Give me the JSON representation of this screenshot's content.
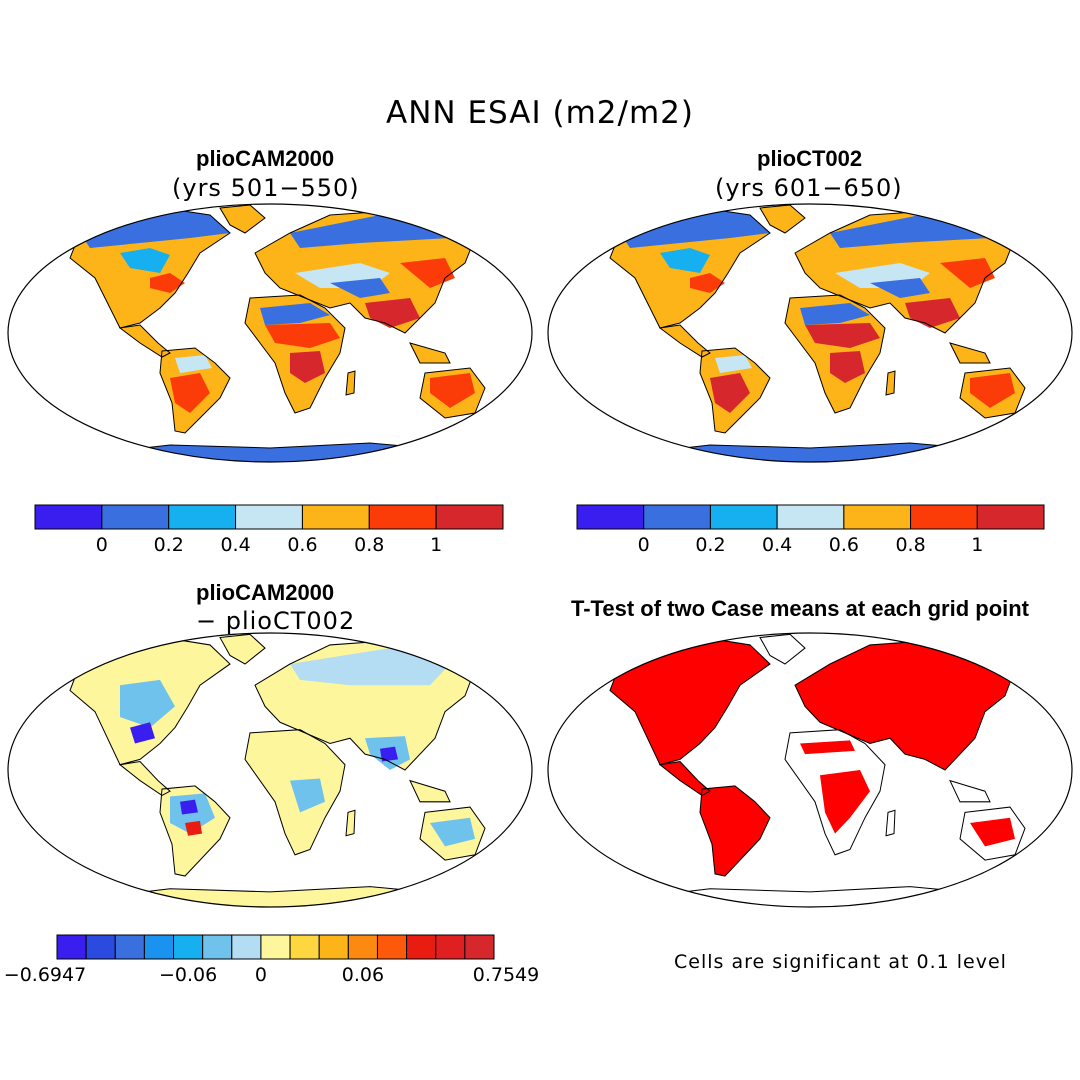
{
  "main_title": "ANN ESAI (m2/m2)",
  "panels": {
    "top_left": {
      "title": "plioCAM2000",
      "subtitle": "(yrs 501−550)"
    },
    "top_right": {
      "title": "plioCT002",
      "subtitle": "(yrs 601−650)"
    },
    "bottom_left": {
      "title": "plioCAM2000",
      "subtitle": "− plioCT002"
    },
    "bottom_right": {
      "title": "T-Test of two Case means at each grid point",
      "note": "Cells are significant at 0.1 level"
    }
  },
  "colorbar_abs": {
    "colors": [
      "#3a1eef",
      "#3a6fe0",
      "#16b0f0",
      "#c6e6f4",
      "#fdb419",
      "#fc3c08",
      "#d6282c"
    ],
    "ticks": [
      "0",
      "0.2",
      "0.4",
      "0.6",
      "0.8",
      "1"
    ]
  },
  "colorbar_diff": {
    "colors": [
      "#3a1eef",
      "#2b4ae0",
      "#3a6fe0",
      "#1a92f0",
      "#16b0f0",
      "#6fc2ec",
      "#b4dcf2",
      "#fdf69c",
      "#fdd640",
      "#fdb419",
      "#fc8a10",
      "#fc5a0a",
      "#e81c10",
      "#e02020",
      "#d6282c"
    ],
    "ticks": [
      "−0.6947",
      "−0.06",
      "0",
      "0.06",
      "0.7549"
    ]
  },
  "map_colors": {
    "ocean": "#ffffff",
    "land_abs": "#fdb419",
    "land_hot": "#fc3c08",
    "land_deep": "#d6282c",
    "land_cool": "#16b0f0",
    "land_cold": "#3a6fe0",
    "land_pale": "#c6e6f4",
    "diff_base": "#fdf69c",
    "diff_blue": "#6fc2ec",
    "diff_deep": "#3a1eef",
    "diff_red": "#e81c10",
    "ttest": "#ff0000"
  }
}
